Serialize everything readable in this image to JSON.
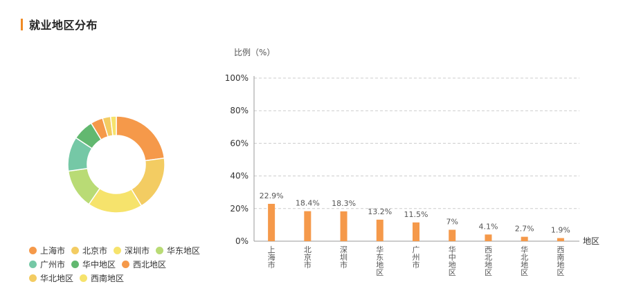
{
  "page_title": "就业地区分布",
  "chart_data": [
    {
      "type": "pie",
      "labels": [
        "上海市",
        "北京市",
        "深圳市",
        "华东地区",
        "广州市",
        "华中地区",
        "西北地区",
        "华北地区",
        "西南地区"
      ],
      "values": [
        22.9,
        18.4,
        18.3,
        13.2,
        11.5,
        7,
        4.1,
        2.7,
        1.9
      ],
      "colors": [
        "#f5994a",
        "#f3cc62",
        "#f6e36c",
        "#b9db75",
        "#75c8a6",
        "#62b870",
        "#f5994a",
        "#f3cc62",
        "#f6e36c"
      ],
      "legend": "bottom"
    },
    {
      "type": "bar",
      "categories": [
        "上海市",
        "北京市",
        "深圳市",
        "华东地区",
        "广州市",
        "华中地区",
        "西北地区",
        "华北地区",
        "西南地区"
      ],
      "values": [
        22.9,
        18.4,
        18.3,
        13.2,
        11.5,
        7,
        4.1,
        2.7,
        1.9
      ],
      "value_labels": [
        "22.9%",
        "18.4%",
        "18.3%",
        "13.2%",
        "11.5%",
        "7%",
        "4.1%",
        "2.7%",
        "1.9%"
      ],
      "ylabel": "比例（%）",
      "xlabel": "地区",
      "ylim": [
        0,
        100
      ],
      "yticks": [
        "0%",
        "20%",
        "40%",
        "60%",
        "80%",
        "100%"
      ],
      "bar_color": "#f5994a",
      "grid": true
    }
  ]
}
